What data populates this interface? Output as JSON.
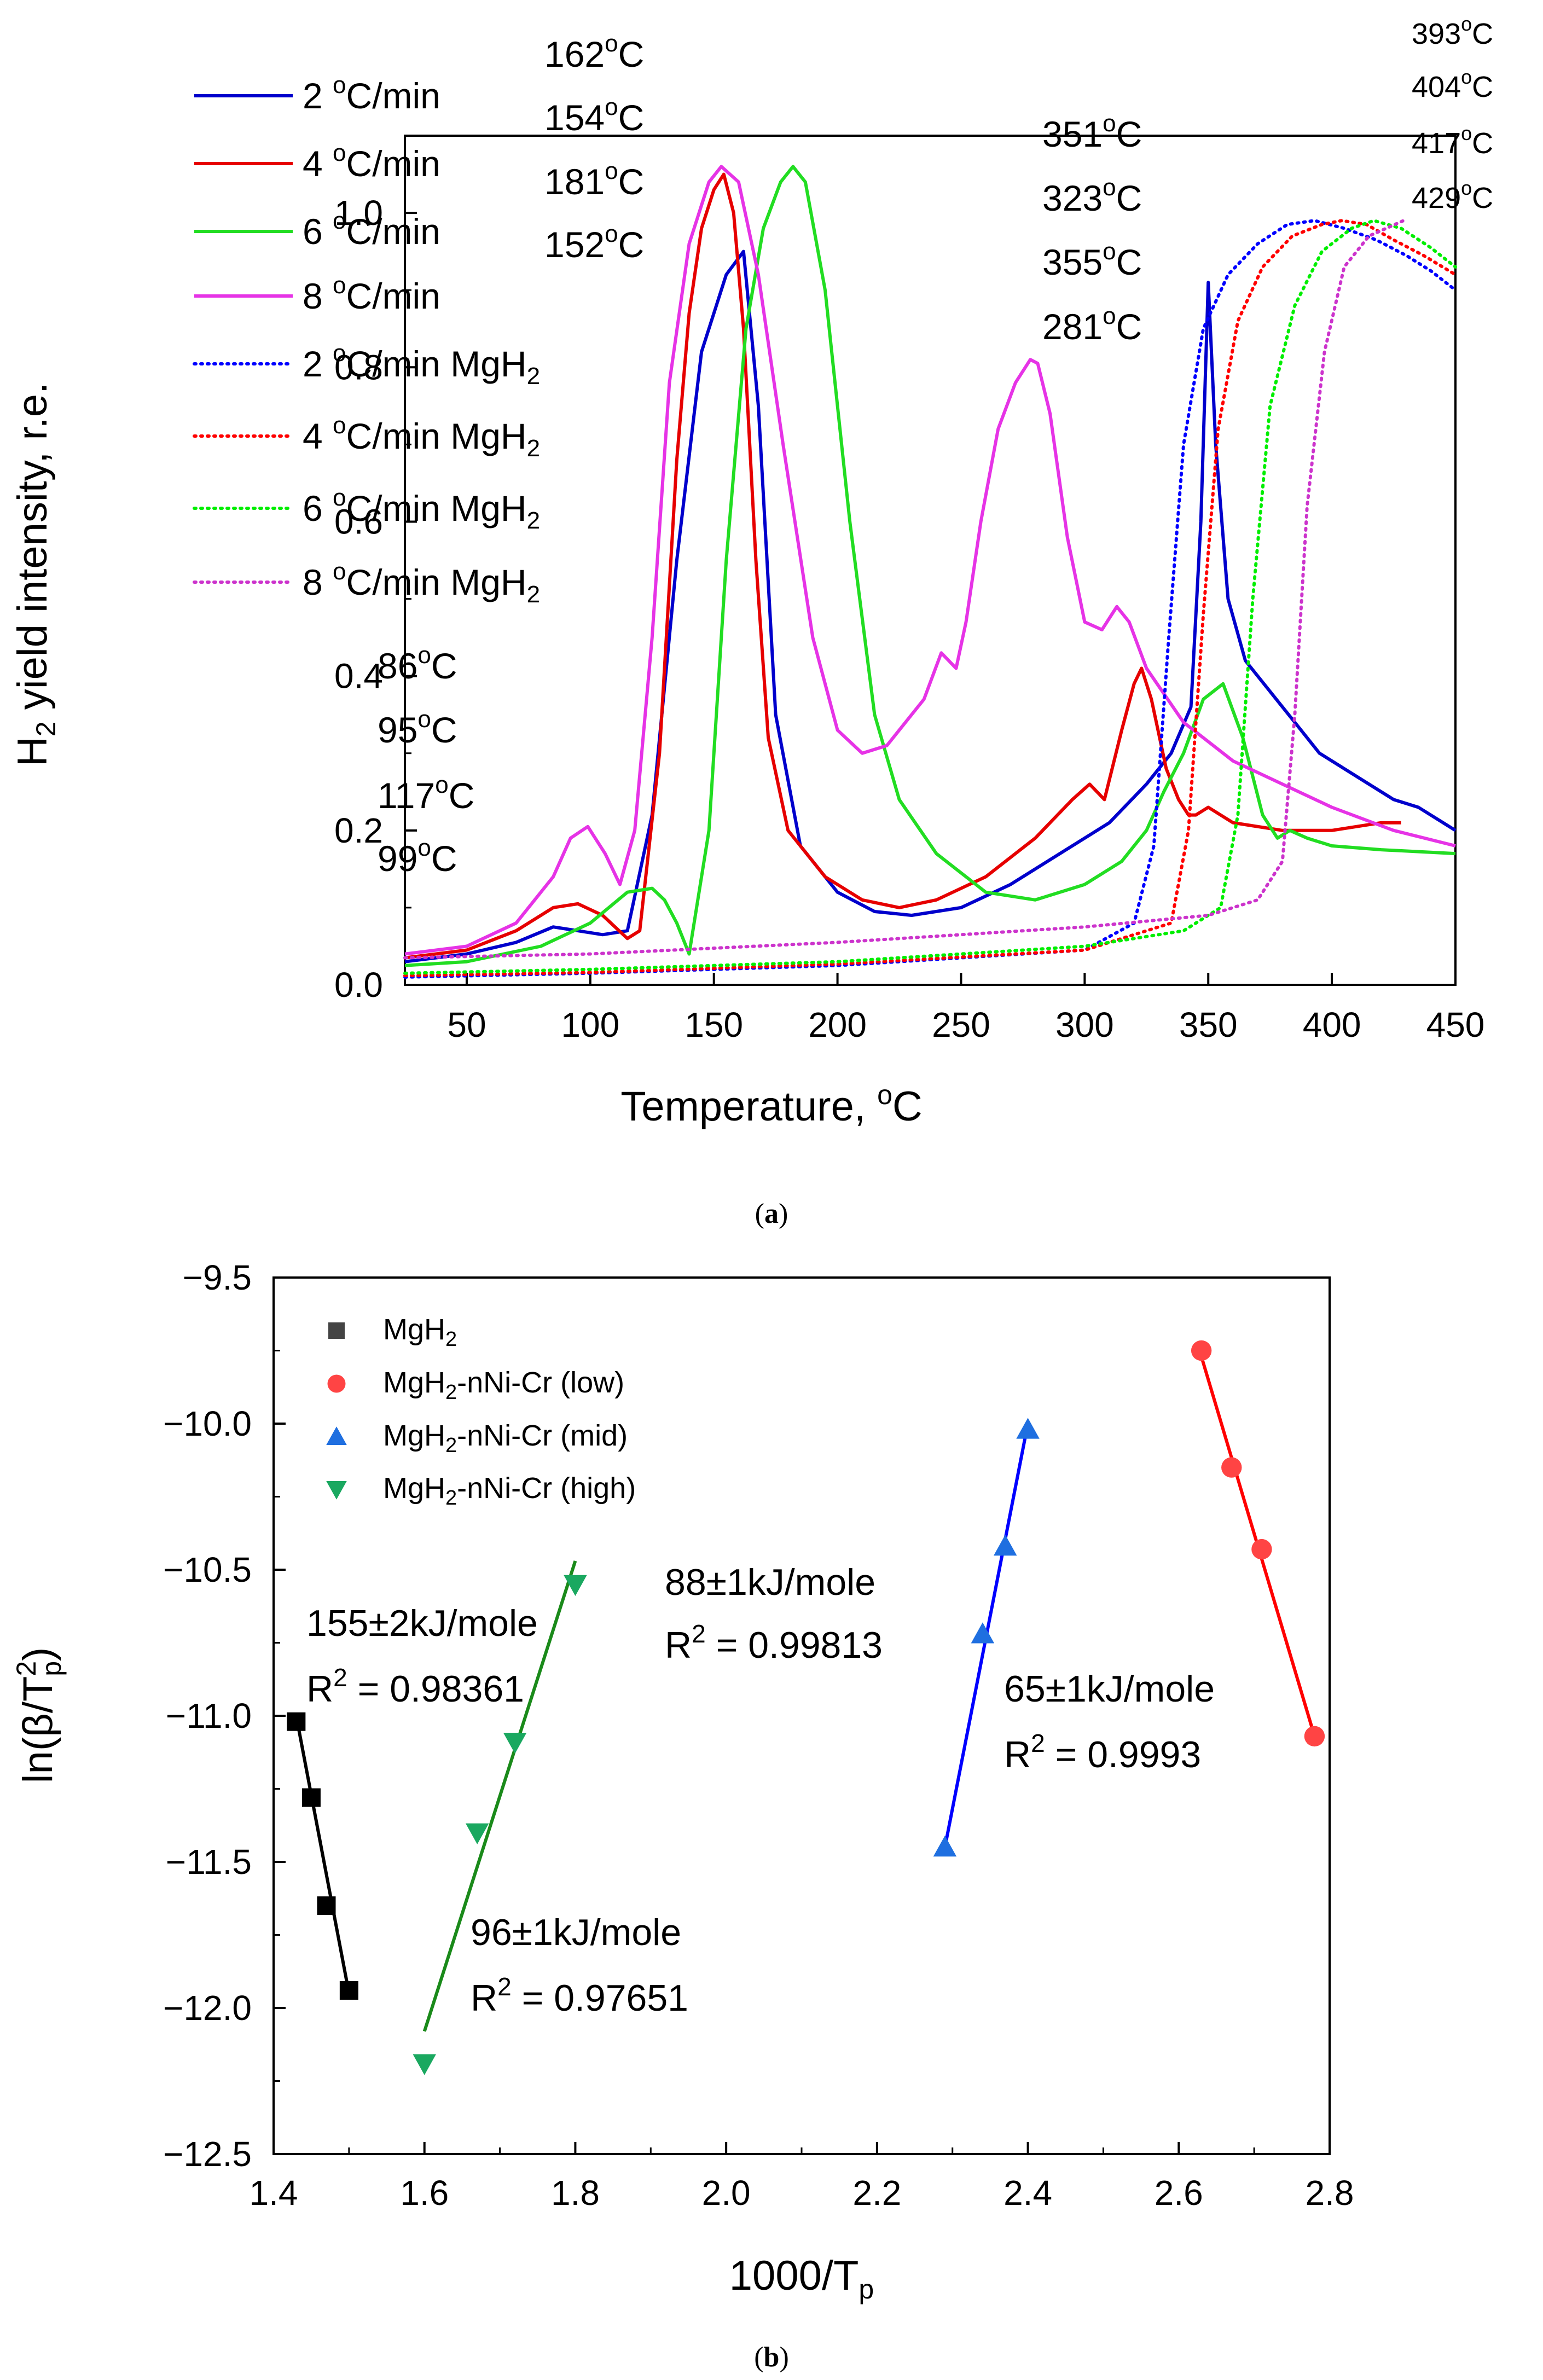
{
  "chart_data": [
    {
      "type": "line",
      "panel_label": "a",
      "xlabel": "Temperature, ",
      "xlabel_sup": "o",
      "xlabel_tail": "C",
      "ylabel_main": "H",
      "ylabel_sub": "2",
      "ylabel_tail": " yield intensity, r.e.",
      "xlim": [
        25,
        450
      ],
      "ylim": [
        0.0,
        1.1
      ],
      "x_ticks": [
        50,
        100,
        150,
        200,
        250,
        300,
        350,
        400,
        450
      ],
      "y_ticks": [
        0.0,
        0.2,
        0.4,
        0.6,
        0.8,
        1.0
      ],
      "x_tick_labels": [
        "50",
        "100",
        "150",
        "200",
        "250",
        "300",
        "350",
        "400",
        "450"
      ],
      "y_tick_labels": [
        "0.0",
        "0.2",
        "0.4",
        "0.6",
        "0.8",
        "1.0"
      ],
      "legend": [
        {
          "name": "2 ",
          "sup": "o",
          "tail": "C/min",
          "sub": "",
          "color": "#0000cc",
          "style": "solid"
        },
        {
          "name": "4 ",
          "sup": "o",
          "tail": "C/min",
          "sub": "",
          "color": "#e60000",
          "style": "solid"
        },
        {
          "name": "6 ",
          "sup": "o",
          "tail": "C/min",
          "sub": "",
          "color": "#22dd22",
          "style": "solid"
        },
        {
          "name": "8 ",
          "sup": "o",
          "tail": "C/min",
          "sub": "",
          "color": "#e633e6",
          "style": "solid"
        },
        {
          "name": "2 ",
          "sup": "o",
          "tail": "C/min MgH",
          "sub": "2",
          "color": "#0000ff",
          "style": "dotted"
        },
        {
          "name": "4 ",
          "sup": "o",
          "tail": "C/min MgH",
          "sub": "2",
          "color": "#ff0000",
          "style": "dotted"
        },
        {
          "name": "6 ",
          "sup": "o",
          "tail": "C/min MgH",
          "sub": "2",
          "color": "#00ee00",
          "style": "dotted"
        },
        {
          "name": "8 ",
          "sup": "o",
          "tail": "C/min MgH",
          "sub": "2",
          "color": "#cc33cc",
          "style": "dotted"
        }
      ],
      "series": [
        {
          "name": "2 oC/min",
          "color": "#0000cc",
          "style": "solid",
          "x": [
            25,
            50,
            70,
            85,
            95,
            105,
            115,
            125,
            135,
            145,
            155,
            162,
            168,
            175,
            185,
            200,
            215,
            230,
            250,
            270,
            290,
            310,
            325,
            335,
            343,
            347,
            350,
            353,
            358,
            365,
            375,
            385,
            395,
            405,
            415,
            425,
            435,
            445,
            450
          ],
          "y": [
            0.03,
            0.04,
            0.055,
            0.075,
            0.07,
            0.065,
            0.07,
            0.22,
            0.55,
            0.82,
            0.92,
            0.95,
            0.75,
            0.35,
            0.18,
            0.12,
            0.095,
            0.09,
            0.1,
            0.13,
            0.17,
            0.21,
            0.26,
            0.3,
            0.36,
            0.6,
            0.91,
            0.7,
            0.5,
            0.42,
            0.38,
            0.34,
            0.3,
            0.28,
            0.26,
            0.24,
            0.23,
            0.21,
            0.2
          ]
        },
        {
          "name": "4 oC/min",
          "color": "#e60000",
          "style": "solid",
          "x": [
            25,
            50,
            70,
            85,
            95,
            105,
            115,
            120,
            128,
            135,
            140,
            145,
            150,
            154,
            158,
            162,
            167,
            172,
            180,
            195,
            210,
            225,
            240,
            260,
            280,
            295,
            302,
            308,
            315,
            320,
            323,
            327,
            333,
            338,
            342,
            345,
            350,
            360,
            380,
            400,
            420,
            428
          ],
          "y": [
            0.035,
            0.045,
            0.07,
            0.1,
            0.105,
            0.09,
            0.06,
            0.07,
            0.3,
            0.68,
            0.87,
            0.98,
            1.03,
            1.05,
            1.0,
            0.85,
            0.55,
            0.32,
            0.2,
            0.14,
            0.11,
            0.1,
            0.11,
            0.14,
            0.19,
            0.24,
            0.26,
            0.24,
            0.33,
            0.39,
            0.41,
            0.37,
            0.28,
            0.24,
            0.22,
            0.22,
            0.23,
            0.21,
            0.2,
            0.2,
            0.21,
            0.21
          ]
        },
        {
          "name": "6 oC/min",
          "color": "#22dd22",
          "style": "solid",
          "x": [
            25,
            50,
            80,
            100,
            115,
            125,
            130,
            135,
            140,
            148,
            155,
            163,
            170,
            177,
            182,
            187,
            195,
            205,
            215,
            225,
            240,
            260,
            280,
            300,
            315,
            325,
            332,
            340,
            348,
            356,
            364,
            372,
            378,
            383,
            390,
            400,
            420,
            450
          ],
          "y": [
            0.025,
            0.03,
            0.05,
            0.08,
            0.12,
            0.125,
            0.11,
            0.08,
            0.04,
            0.2,
            0.55,
            0.85,
            0.98,
            1.04,
            1.06,
            1.04,
            0.9,
            0.6,
            0.35,
            0.24,
            0.17,
            0.12,
            0.11,
            0.13,
            0.16,
            0.2,
            0.25,
            0.3,
            0.37,
            0.39,
            0.32,
            0.22,
            0.19,
            0.2,
            0.19,
            0.18,
            0.175,
            0.17
          ]
        },
        {
          "name": "8 oC/min",
          "color": "#e633e6",
          "style": "solid",
          "x": [
            25,
            50,
            70,
            85,
            92,
            99,
            106,
            112,
            118,
            125,
            132,
            140,
            148,
            153,
            160,
            168,
            178,
            190,
            200,
            210,
            220,
            235,
            242,
            248,
            252,
            258,
            265,
            272,
            278,
            281,
            286,
            293,
            300,
            307,
            313,
            318,
            325,
            340,
            360,
            380,
            400,
            425,
            450
          ],
          "y": [
            0.04,
            0.05,
            0.08,
            0.14,
            0.19,
            0.205,
            0.17,
            0.13,
            0.2,
            0.45,
            0.78,
            0.96,
            1.04,
            1.06,
            1.04,
            0.92,
            0.7,
            0.45,
            0.33,
            0.3,
            0.31,
            0.37,
            0.43,
            0.41,
            0.47,
            0.6,
            0.72,
            0.78,
            0.81,
            0.805,
            0.74,
            0.58,
            0.47,
            0.46,
            0.49,
            0.47,
            0.41,
            0.34,
            0.29,
            0.26,
            0.23,
            0.2,
            0.18
          ]
        },
        {
          "name": "2 oC/min MgH2",
          "color": "#0000ff",
          "style": "dotted",
          "x": [
            25,
            100,
            200,
            300,
            320,
            328,
            334,
            340,
            348,
            358,
            370,
            382,
            393,
            405,
            418,
            430,
            440,
            450
          ],
          "y": [
            0.01,
            0.015,
            0.025,
            0.045,
            0.08,
            0.18,
            0.45,
            0.7,
            0.85,
            0.92,
            0.96,
            0.985,
            0.99,
            0.98,
            0.965,
            0.945,
            0.925,
            0.9
          ]
        },
        {
          "name": "4 oC/min MgH2",
          "color": "#ff0000",
          "style": "dotted",
          "x": [
            25,
            100,
            200,
            300,
            335,
            342,
            348,
            354,
            362,
            372,
            384,
            396,
            404,
            414,
            425,
            437,
            450
          ],
          "y": [
            0.012,
            0.016,
            0.027,
            0.045,
            0.08,
            0.2,
            0.48,
            0.72,
            0.86,
            0.93,
            0.97,
            0.985,
            0.99,
            0.985,
            0.965,
            0.945,
            0.92
          ]
        },
        {
          "name": "6 oC/min MgH2",
          "color": "#00ee00",
          "style": "dotted",
          "x": [
            25,
            100,
            200,
            300,
            340,
            355,
            362,
            368,
            375,
            385,
            396,
            408,
            417,
            428,
            440,
            450
          ],
          "y": [
            0.015,
            0.02,
            0.03,
            0.05,
            0.07,
            0.1,
            0.22,
            0.5,
            0.75,
            0.88,
            0.95,
            0.98,
            0.99,
            0.98,
            0.955,
            0.93
          ]
        },
        {
          "name": "8 oC/min MgH2",
          "color": "#cc33cc",
          "style": "dotted",
          "x": [
            25,
            100,
            200,
            300,
            350,
            370,
            380,
            385,
            390,
            397,
            405,
            415,
            429
          ],
          "y": [
            0.035,
            0.04,
            0.055,
            0.075,
            0.09,
            0.11,
            0.16,
            0.35,
            0.62,
            0.82,
            0.93,
            0.97,
            0.99
          ]
        }
      ],
      "annotations": [
        {
          "text": "162",
          "tail": "C",
          "color": "#0000cc",
          "group": "peak1"
        },
        {
          "text": "154",
          "tail": "C",
          "color": "#e60000",
          "group": "peak1"
        },
        {
          "text": "181",
          "tail": "C",
          "color": "#22dd22",
          "group": "peak1"
        },
        {
          "text": "152",
          "tail": "C",
          "color": "#e633e6",
          "group": "peak1"
        },
        {
          "text": "351",
          "tail": "C",
          "color": "#0000cc",
          "group": "peak2"
        },
        {
          "text": "323",
          "tail": "C",
          "color": "#e60000",
          "group": "peak2"
        },
        {
          "text": "355",
          "tail": "C",
          "color": "#22dd22",
          "group": "peak2"
        },
        {
          "text": "281",
          "tail": "C",
          "color": "#e633e6",
          "group": "peak2"
        },
        {
          "text": "393",
          "tail": "C",
          "color": "#0000ff",
          "group": "peak3"
        },
        {
          "text": "404",
          "tail": "C",
          "color": "#ff0000",
          "group": "peak3"
        },
        {
          "text": "417",
          "tail": "C",
          "color": "#00ee00",
          "group": "peak3"
        },
        {
          "text": "429",
          "tail": "C",
          "color": "#cc33cc",
          "group": "peak3"
        },
        {
          "text": "86",
          "tail": "C",
          "color": "#0000cc",
          "group": "peak0"
        },
        {
          "text": "95",
          "tail": "C",
          "color": "#e60000",
          "group": "peak0"
        },
        {
          "text": "117",
          "tail": "C",
          "color": "#22dd22",
          "group": "peak0"
        },
        {
          "text": "99",
          "tail": "C",
          "color": "#e633e6",
          "group": "peak0"
        }
      ],
      "degree_sup": "o"
    },
    {
      "type": "scatter",
      "panel_label": "b",
      "xlabel": "1000/T",
      "xlabel_sub": "p",
      "ylabel": "ln(β/T",
      "ylabel_sup": "2",
      "ylabel_sub": "p",
      "ylabel_tail": ")",
      "xlim": [
        1.4,
        2.8
      ],
      "ylim": [
        -12.5,
        -9.5
      ],
      "x_ticks": [
        1.4,
        1.6,
        1.8,
        2.0,
        2.2,
        2.4,
        2.6,
        2.8
      ],
      "y_ticks": [
        -12.5,
        -12.0,
        -11.5,
        -11.0,
        -10.5,
        -10.0,
        -9.5
      ],
      "x_tick_labels": [
        "1.4",
        "1.6",
        "1.8",
        "2.0",
        "2.2",
        "2.4",
        "2.6",
        "2.8"
      ],
      "y_tick_labels": [
        "−12.5",
        "−12.0",
        "−11.5",
        "−11.0",
        "−10.5",
        "−10.0",
        "−9.5"
      ],
      "legend": [
        {
          "name": "MgH",
          "sub": "2",
          "tail": "",
          "marker": "square",
          "color": "#444444"
        },
        {
          "name": "MgH",
          "sub": "2",
          "tail": "-nNi-Cr (low)",
          "marker": "circle",
          "color": "#ff4444"
        },
        {
          "name": "MgH",
          "sub": "2",
          "tail": "-nNi-Cr (mid)",
          "marker": "triangle-up",
          "color": "#1f6fe0"
        },
        {
          "name": "MgH",
          "sub": "2",
          "tail": "-nNi-Cr (high)",
          "marker": "triangle-down",
          "color": "#1aa860"
        }
      ],
      "series": [
        {
          "name": "MgH2",
          "marker": "square",
          "color": "#000000",
          "line_color": "#000000",
          "x": [
            1.43,
            1.45,
            1.47,
            1.5
          ],
          "y": [
            -11.02,
            -11.28,
            -11.65,
            -11.94
          ],
          "fit_x": [
            1.43,
            1.5
          ],
          "fit_y": [
            -11.0,
            -11.95
          ]
        },
        {
          "name": "MgH2-nNi-Cr (low)",
          "marker": "circle",
          "color": "#ff4444",
          "line_color": "#ff0000",
          "x": [
            2.63,
            2.67,
            2.71,
            2.78
          ],
          "y": [
            -9.75,
            -10.15,
            -10.43,
            -11.07
          ],
          "fit_x": [
            2.63,
            2.78
          ],
          "fit_y": [
            -9.77,
            -11.07
          ]
        },
        {
          "name": "MgH2-nNi-Cr (mid)",
          "marker": "triangle-up",
          "color": "#1f6fe0",
          "line_color": "#0000ff",
          "x": [
            2.29,
            2.34,
            2.37,
            2.4
          ],
          "y": [
            -11.45,
            -10.72,
            -10.42,
            -10.02
          ],
          "fit_x": [
            2.29,
            2.4
          ],
          "fit_y": [
            -11.45,
            -10.0
          ]
        },
        {
          "name": "MgH2-nNi-Cr (high)",
          "marker": "triangle-down",
          "color": "#1aa860",
          "line_color": "#1a8a1a",
          "x": [
            1.6,
            1.67,
            1.72,
            1.8
          ],
          "y": [
            -12.19,
            -11.4,
            -11.09,
            -10.55
          ],
          "fit_x": [
            1.6,
            1.8
          ],
          "fit_y": [
            -12.08,
            -10.47
          ]
        }
      ],
      "annotations": [
        {
          "line1": "155±2kJ/mole",
          "line2_a": "R",
          "line2_sup": "2",
          "line2_b": " = 0.98361",
          "color": "#000000"
        },
        {
          "line1": "88±1kJ/mole",
          "line2_a": "R",
          "line2_sup": "2",
          "line2_b": " = 0.99813",
          "color": "#0000ff"
        },
        {
          "line1": "65±1kJ/mole",
          "line2_a": "R",
          "line2_sup": "2",
          "line2_b": " = 0.9993",
          "color": "#ff0000"
        },
        {
          "line1": "96±1kJ/mole",
          "line2_a": "R",
          "line2_sup": "2",
          "line2_b": " = 0.97651",
          "color": "#1a8a1a"
        }
      ]
    }
  ]
}
